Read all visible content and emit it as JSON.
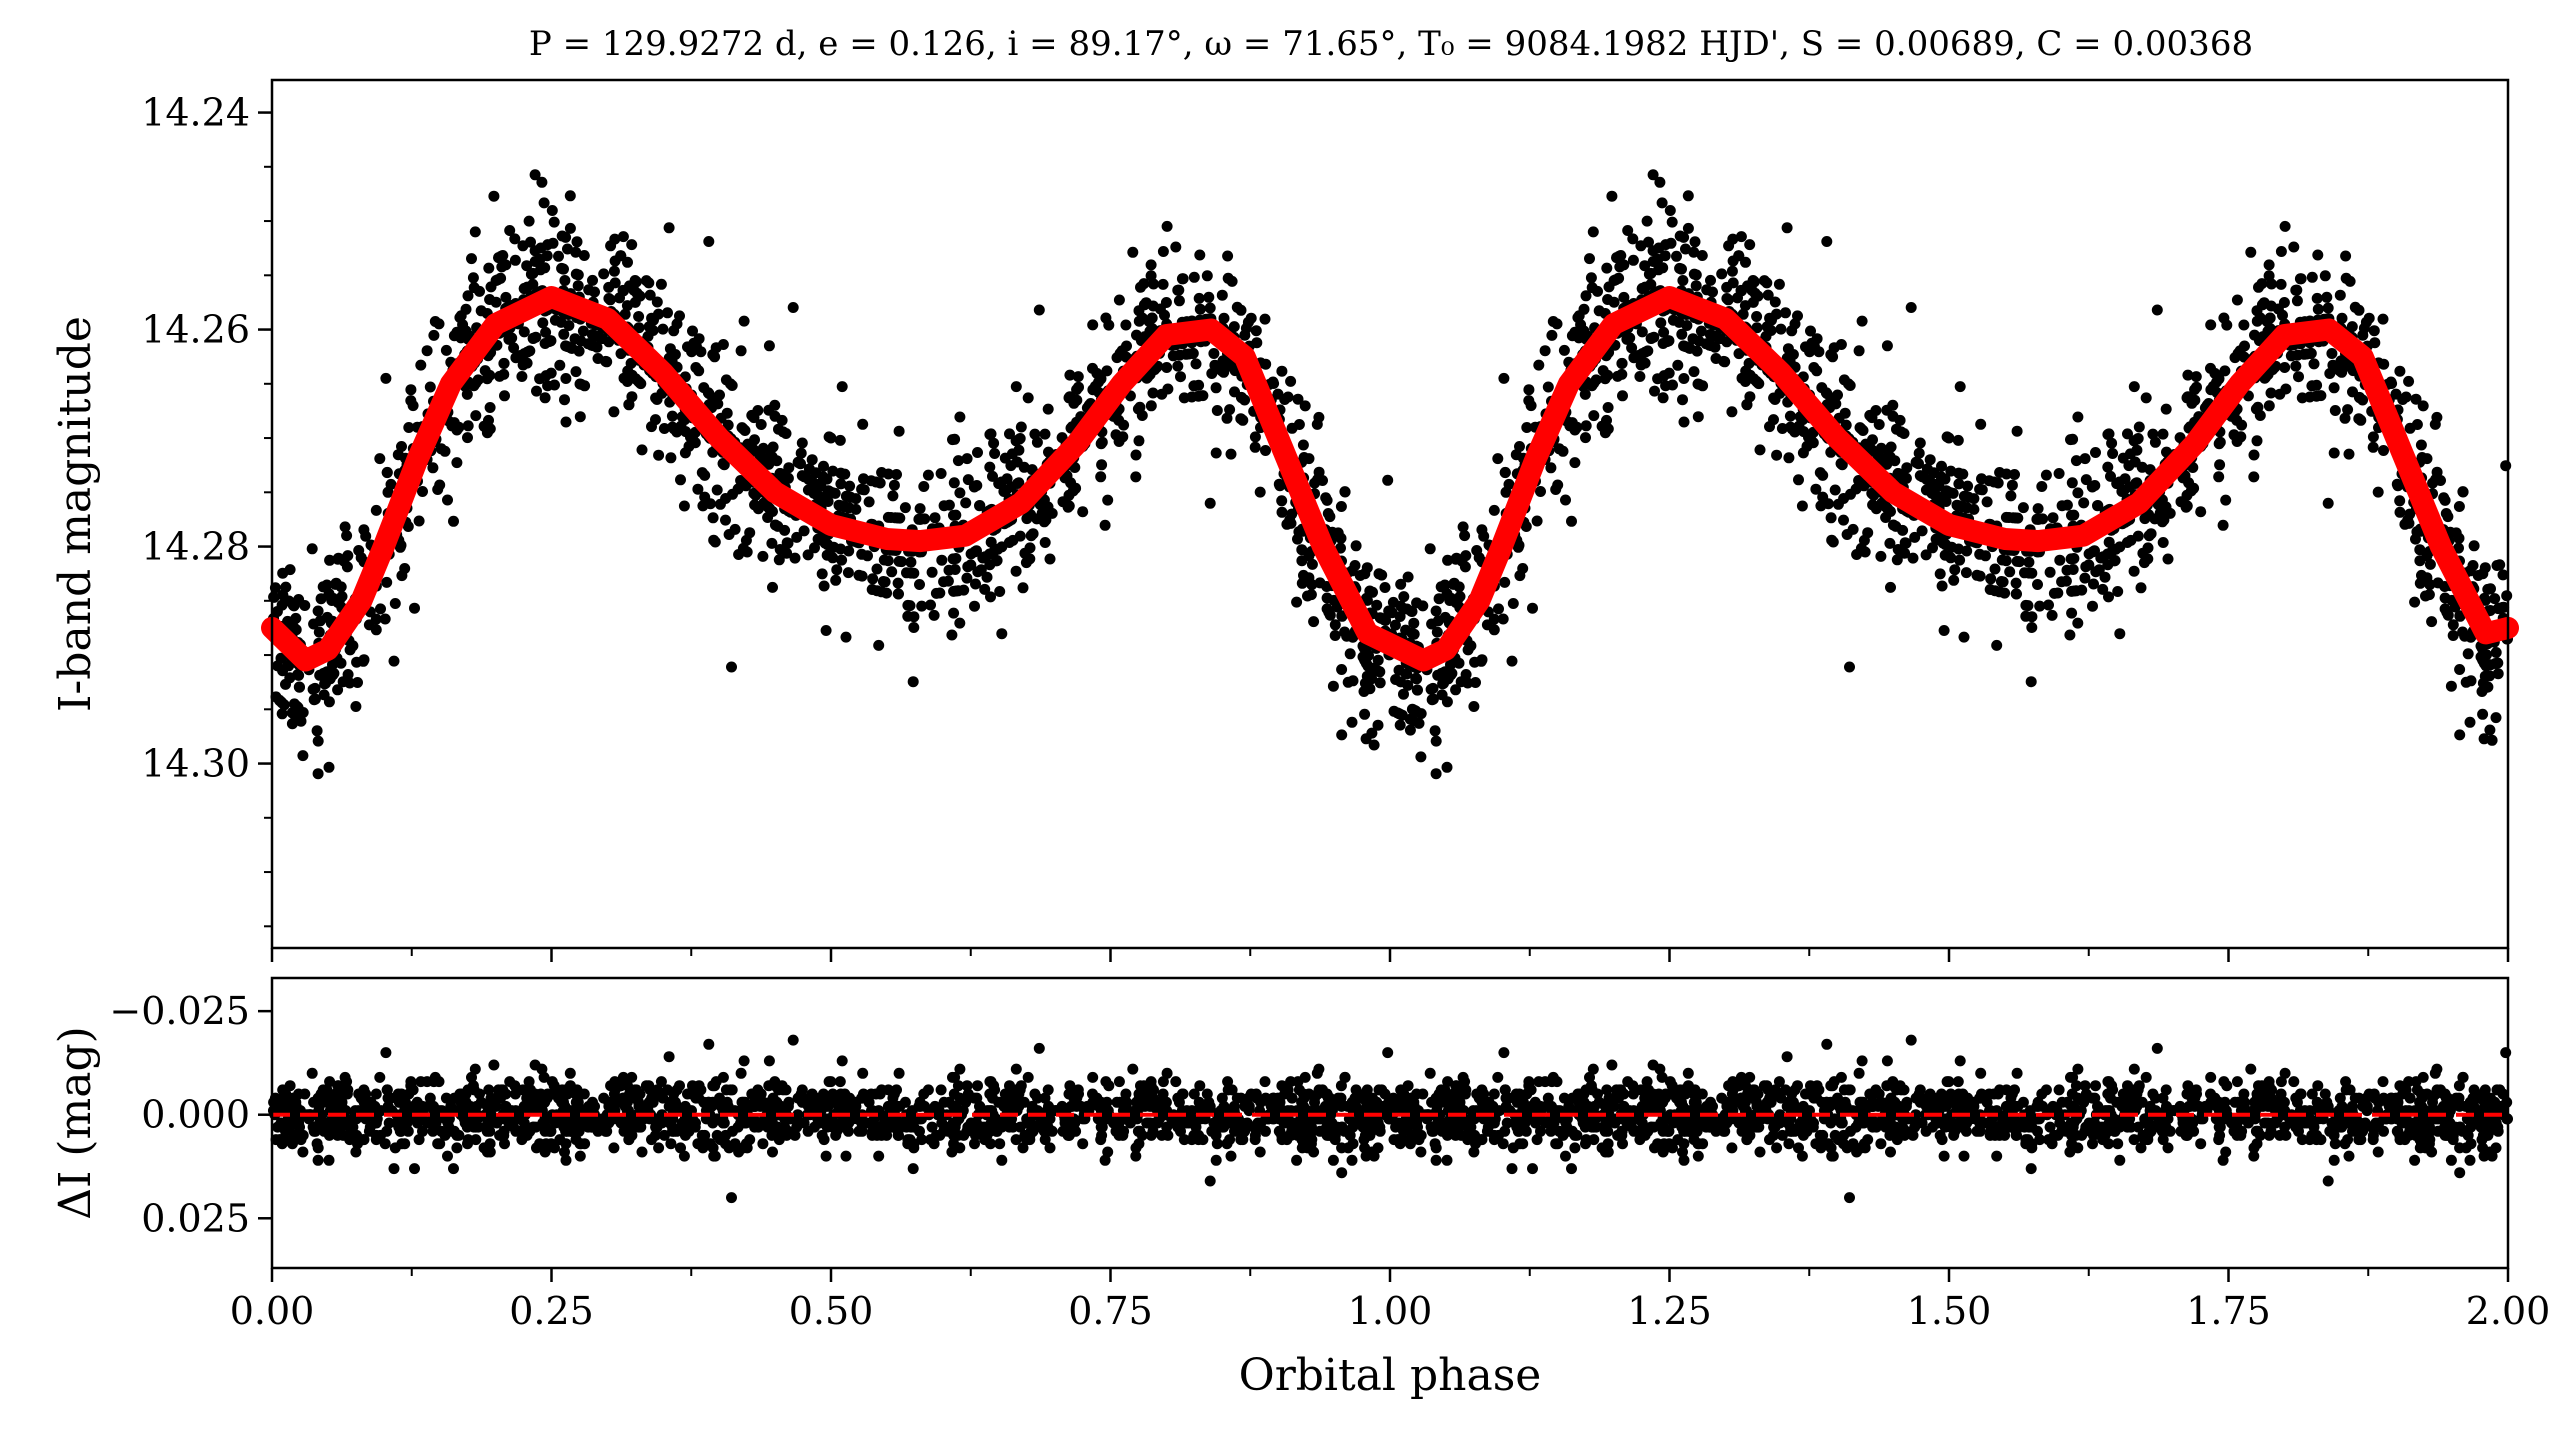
{
  "chart_data": [
    {
      "type": "scatter",
      "title": "P = 129.9272 d, e = 0.126, i = 89.17°, ω = 71.65°, T₀ = 9084.1982 HJD', S = 0.00689, C = 0.00368",
      "xlabel": "",
      "ylabel": "I-band magnitude",
      "xlim": [
        0,
        2
      ],
      "ylim": [
        14.317,
        14.237
      ],
      "y_inverted": true,
      "yticks": [
        14.24,
        14.26,
        14.28,
        14.3
      ],
      "ytick_labels": [
        "14.24",
        "14.26",
        "14.28",
        "14.30"
      ],
      "grid": false,
      "series": [
        {
          "kind": "scatter",
          "color": "#000000",
          "note_values": "observed points (dense, phase-folded, repeated twice)"
        },
        {
          "kind": "model-line",
          "color": "#ff0000",
          "x": [
            0.0,
            0.03,
            0.05,
            0.08,
            0.1,
            0.13,
            0.16,
            0.2,
            0.25,
            0.3,
            0.35,
            0.4,
            0.45,
            0.5,
            0.55,
            0.58,
            0.62,
            0.67,
            0.72,
            0.76,
            0.8,
            0.84,
            0.87,
            0.9,
            0.94,
            0.98,
            1.0,
            1.03,
            1.05,
            1.08,
            1.1,
            1.13,
            1.16,
            1.2,
            1.25,
            1.3,
            1.35,
            1.4,
            1.45,
            1.5,
            1.55,
            1.58,
            1.62,
            1.67,
            1.72,
            1.76,
            1.8,
            1.84,
            1.87,
            1.9,
            1.94,
            1.98,
            2.0
          ],
          "y": [
            14.2875,
            14.2905,
            14.2895,
            14.285,
            14.28,
            14.272,
            14.265,
            14.2595,
            14.257,
            14.259,
            14.264,
            14.27,
            14.275,
            14.278,
            14.2793,
            14.2795,
            14.279,
            14.276,
            14.2705,
            14.265,
            14.2605,
            14.26,
            14.2625,
            14.27,
            14.28,
            14.288,
            14.289,
            14.2905,
            14.2895,
            14.285,
            14.28,
            14.272,
            14.265,
            14.2595,
            14.257,
            14.259,
            14.264,
            14.27,
            14.275,
            14.278,
            14.2793,
            14.2795,
            14.279,
            14.276,
            14.2705,
            14.265,
            14.2605,
            14.26,
            14.2625,
            14.27,
            14.28,
            14.288,
            14.2875
          ]
        }
      ]
    },
    {
      "type": "scatter",
      "title": "",
      "xlabel": "Orbital phase",
      "ylabel": "ΔI (mag)",
      "xlim": [
        0,
        2
      ],
      "ylim": [
        0.037,
        -0.033
      ],
      "y_inverted": true,
      "yticks": [
        -0.025,
        0.0,
        0.025
      ],
      "ytick_labels": [
        "−0.025",
        "0.000",
        "0.025"
      ],
      "xticks": [
        0.0,
        0.25,
        0.5,
        0.75,
        1.0,
        1.25,
        1.5,
        1.75,
        2.0
      ],
      "xtick_labels": [
        "0.00",
        "0.25",
        "0.50",
        "0.75",
        "1.00",
        "1.25",
        "1.50",
        "1.75",
        "2.00"
      ],
      "grid": false,
      "series": [
        {
          "kind": "scatter",
          "color": "#000000",
          "note_values": "residuals scattered around zero, mostly within ±0.01 mag"
        },
        {
          "kind": "reference-line",
          "style": "dashed",
          "color": "#ff0000",
          "y": 0.0
        }
      ]
    }
  ]
}
